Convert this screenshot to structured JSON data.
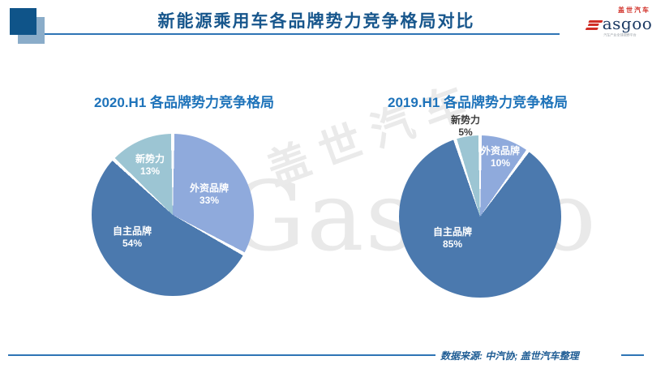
{
  "header": {
    "title": "新能源乘用车各品牌势力竞争格局对比",
    "logo": {
      "brand_cn": "盖世汽车",
      "brand_en": "asgoo",
      "tagline": "汽车产业全球视野平台"
    }
  },
  "watermark": {
    "text_cn": "盖世汽车",
    "text_en": "Gasgoo"
  },
  "chart_data": [
    {
      "type": "pie",
      "title": "2020.H1 各品牌势力竞争格局",
      "labels": [
        "外资品牌",
        "自主品牌",
        "新势力"
      ],
      "values": [
        33,
        54,
        13
      ],
      "unit": "%",
      "start_angle_deg": 0,
      "direction": "clockwise",
      "colors": [
        "#8faadc",
        "#4b79ae",
        "#9cc5d3"
      ],
      "label_colors": [
        "#ffffff",
        "#ffffff",
        "#ffffff"
      ],
      "legend_position": "none"
    },
    {
      "type": "pie",
      "title": "2019.H1 各品牌势力竞争格局",
      "labels": [
        "外资品牌",
        "自主品牌",
        "新势力"
      ],
      "values": [
        10,
        85,
        5
      ],
      "unit": "%",
      "start_angle_deg": 0,
      "direction": "clockwise",
      "colors": [
        "#8faadc",
        "#4b79ae",
        "#9cc5d3"
      ],
      "label_colors": [
        "#ffffff",
        "#ffffff",
        "#3a3a3a"
      ],
      "legend_position": "none"
    }
  ],
  "footer": {
    "source": "数据来源: 中汽协; 盖世汽车整理"
  },
  "colors": {
    "title": "#17568c",
    "chart_title": "#1e73ba",
    "divider": "#2e74b5",
    "slice_foreign": "#8faadc",
    "slice_domestic": "#4b79ae",
    "slice_newforce": "#9cc5d3",
    "logo_red": "#d02e26",
    "logo_navy": "#1c3a63",
    "watermark": "#e9e9e9"
  }
}
